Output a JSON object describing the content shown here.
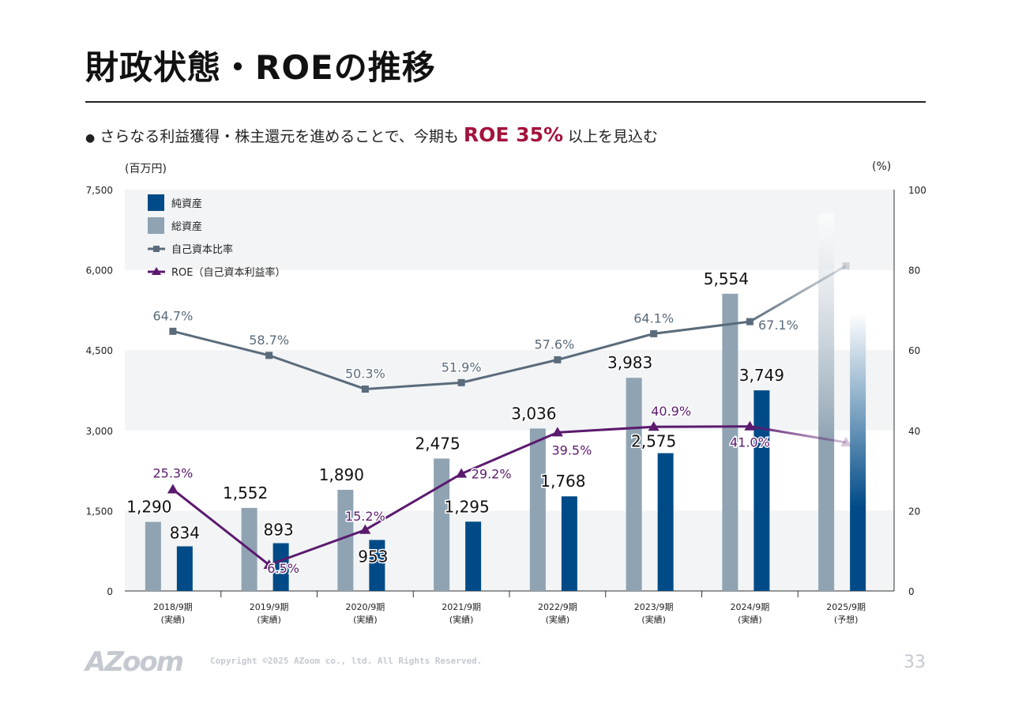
{
  "title": "財政状態・ROEの推移",
  "subtitle": {
    "bullet": "●",
    "before": "さらなる利益獲得・株主還元を進めることで、今期も",
    "highlight": "ROE 35%",
    "after": "以上を見込む"
  },
  "colors": {
    "net_assets": "#004b87",
    "total_assets": "#8fa3b3",
    "equity_ratio": "#5a6b7b",
    "roe": "#5b1a6e",
    "highlight": "#a4133c"
  },
  "chart_data": {
    "type": "bar+line",
    "categories": [
      [
        "2018/9期",
        "(実績)"
      ],
      [
        "2019/9期",
        "(実績)"
      ],
      [
        "2020/9期",
        "(実績)"
      ],
      [
        "2021/9期",
        "(実績)"
      ],
      [
        "2022/9期",
        "(実績)"
      ],
      [
        "2023/9期",
        "(実績)"
      ],
      [
        "2024/9期",
        "(実績)"
      ],
      [
        "2025/9期",
        "(予想)"
      ]
    ],
    "left_axis": {
      "label": "(百万円)",
      "range": [
        0,
        7500
      ],
      "ticks": [
        "0",
        "1,500",
        "3,000",
        "4,500",
        "6,000",
        "7,500"
      ]
    },
    "right_axis": {
      "label": "(%)",
      "range": [
        0,
        100
      ],
      "ticks": [
        "0",
        "20",
        "40",
        "60",
        "80",
        "100"
      ]
    },
    "grid_bands": true,
    "legend_placement": "top-left",
    "series": [
      {
        "name": "純資産",
        "type": "bar",
        "values": [
          834,
          893,
          953,
          1295,
          1768,
          2575,
          3749,
          5200
        ],
        "labels": [
          "834",
          "893",
          "953",
          "1,295",
          "1,768",
          "2,575",
          "3,749",
          ""
        ]
      },
      {
        "name": "総資産",
        "type": "bar",
        "values": [
          1290,
          1552,
          1890,
          2475,
          3036,
          3983,
          5554,
          7050
        ],
        "labels": [
          "1,290",
          "1,552",
          "1,890",
          "2,475",
          "3,036",
          "3,983",
          "5,554",
          ""
        ]
      },
      {
        "name": "自己資本比率",
        "type": "line",
        "axis": "right",
        "values": [
          64.7,
          58.7,
          50.3,
          51.9,
          57.6,
          64.1,
          67.1,
          81
        ],
        "labels": [
          "64.7%",
          "58.7%",
          "50.3%",
          "51.9%",
          "57.6%",
          "64.1%",
          "67.1%",
          ""
        ]
      },
      {
        "name": "ROE（自己資本利益率）",
        "type": "line",
        "axis": "right",
        "values": [
          25.3,
          6.5,
          15.2,
          29.2,
          39.5,
          40.9,
          41.0,
          37
        ],
        "labels": [
          "25.3%",
          "6.5%",
          "15.2%",
          "29.2%",
          "39.5%",
          "40.9%",
          "41.0%",
          ""
        ]
      }
    ],
    "forecast_index": 7
  },
  "footer": {
    "logo": "AZoom",
    "copyright": "Copyright ©2025 AZoom co., ltd. All Rights Reserved.",
    "page": "33"
  }
}
